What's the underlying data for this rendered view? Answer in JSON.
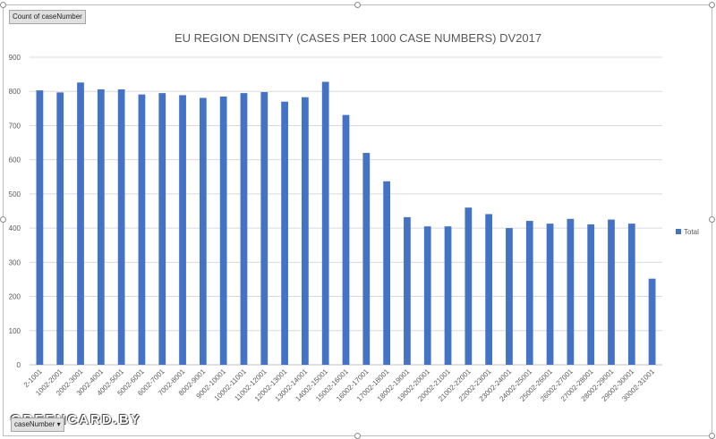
{
  "field_buttons": {
    "value_field": "Count of caseNumber",
    "axis_field": "caseNumber"
  },
  "watermark": "GREENCARD.BY",
  "colors": {
    "bar": "#4472c4",
    "grid": "#d9d9d9",
    "text": "#595959"
  },
  "chart_data": {
    "type": "bar",
    "title": "EU REGION DENSITY (CASES PER 1000 CASE NUMBERS) DV2017",
    "xlabel": "",
    "ylabel": "",
    "ylim": [
      0,
      900
    ],
    "yticks": [
      0,
      100,
      200,
      300,
      400,
      500,
      600,
      700,
      800,
      900
    ],
    "grid": true,
    "legend_position": "right",
    "categories": [
      "2-1001",
      "1002-2001",
      "2002-3001",
      "3002-4001",
      "4002-5001",
      "5002-6001",
      "6002-7001",
      "7002-8001",
      "8002-9001",
      "9002-10001",
      "10002-11001",
      "11002-12001",
      "12002-13001",
      "13002-14001",
      "14002-15001",
      "15002-16001",
      "16002-17001",
      "17002-18001",
      "18002-19001",
      "19002-20001",
      "20002-21001",
      "21002-22001",
      "22002-23001",
      "23002-24001",
      "24002-25001",
      "25002-26001",
      "26002-27001",
      "27002-28001",
      "28002-29001",
      "29002-30001",
      "30002-31001"
    ],
    "series": [
      {
        "name": "Total",
        "values": [
          803,
          797,
          826,
          806,
          806,
          791,
          795,
          789,
          781,
          785,
          795,
          798,
          770,
          783,
          828,
          731,
          620,
          537,
          432,
          405,
          405,
          460,
          441,
          400,
          421,
          413,
          427,
          411,
          425,
          413,
          252
        ]
      }
    ]
  }
}
